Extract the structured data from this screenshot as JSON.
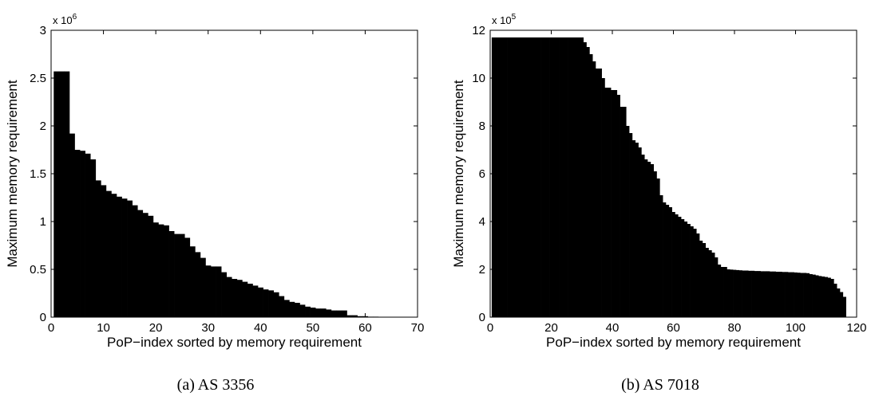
{
  "figure": {
    "captions": [
      "(a) AS 3356",
      "(b) AS 7018"
    ]
  },
  "chart_data": [
    {
      "type": "bar",
      "caption": "(a) AS 3356",
      "xlabel": "PoP−index sorted by memory requirement",
      "ylabel": "Maximum memory requirement",
      "exponent_label": "x 10",
      "exponent_power": "6",
      "xlim": [
        0,
        70
      ],
      "ylim": [
        0,
        3
      ],
      "xticks": [
        0,
        10,
        20,
        30,
        40,
        50,
        60,
        70
      ],
      "yticks": [
        0,
        0.5,
        1,
        1.5,
        2,
        2.5,
        3
      ],
      "ytick_labels": [
        "0",
        "0.5",
        "1",
        "1.5",
        "2",
        "2.5",
        "3"
      ],
      "bar_color": "#000000",
      "x": [
        1,
        2,
        3,
        4,
        5,
        6,
        7,
        8,
        9,
        10,
        11,
        12,
        13,
        14,
        15,
        16,
        17,
        18,
        19,
        20,
        21,
        22,
        23,
        24,
        25,
        26,
        27,
        28,
        29,
        30,
        31,
        32,
        33,
        34,
        35,
        36,
        37,
        38,
        39,
        40,
        41,
        42,
        43,
        44,
        45,
        46,
        47,
        48,
        49,
        50,
        51,
        52,
        53,
        54,
        55,
        56,
        57,
        58,
        59,
        60,
        61,
        62,
        63,
        64,
        65,
        66,
        67,
        68,
        69
      ],
      "values": [
        2.57,
        2.57,
        2.57,
        1.92,
        1.75,
        1.74,
        1.71,
        1.65,
        1.43,
        1.38,
        1.32,
        1.29,
        1.26,
        1.24,
        1.22,
        1.17,
        1.12,
        1.09,
        1.06,
        0.99,
        0.97,
        0.96,
        0.9,
        0.87,
        0.87,
        0.83,
        0.74,
        0.68,
        0.62,
        0.54,
        0.53,
        0.53,
        0.47,
        0.42,
        0.4,
        0.39,
        0.37,
        0.35,
        0.33,
        0.31,
        0.29,
        0.28,
        0.26,
        0.22,
        0.18,
        0.16,
        0.15,
        0.13,
        0.11,
        0.1,
        0.09,
        0.09,
        0.08,
        0.07,
        0.07,
        0.07,
        0.02,
        0.02,
        0.01,
        0.01,
        0.005,
        0.005,
        0.004,
        0.003,
        0.003,
        0.002,
        0.002,
        0.001,
        0.001
      ]
    },
    {
      "type": "bar",
      "caption": "(b) AS 7018",
      "xlabel": "PoP−index sorted by memory requirement",
      "ylabel": "Maximum memory requirement",
      "exponent_label": "x 10",
      "exponent_power": "5",
      "xlim": [
        0,
        120
      ],
      "ylim": [
        0,
        12
      ],
      "xticks": [
        0,
        20,
        40,
        60,
        80,
        100,
        120
      ],
      "yticks": [
        0,
        2,
        4,
        6,
        8,
        10,
        12
      ],
      "ytick_labels": [
        "0",
        "2",
        "4",
        "6",
        "8",
        "10",
        "12"
      ],
      "bar_color": "#000000",
      "x": [
        1,
        2,
        3,
        4,
        5,
        6,
        7,
        8,
        9,
        10,
        11,
        12,
        13,
        14,
        15,
        16,
        17,
        18,
        19,
        20,
        21,
        22,
        23,
        24,
        25,
        26,
        27,
        28,
        29,
        30,
        31,
        32,
        33,
        34,
        35,
        36,
        37,
        38,
        39,
        40,
        41,
        42,
        43,
        44,
        45,
        46,
        47,
        48,
        49,
        50,
        51,
        52,
        53,
        54,
        55,
        56,
        57,
        58,
        59,
        60,
        61,
        62,
        63,
        64,
        65,
        66,
        67,
        68,
        69,
        70,
        71,
        72,
        73,
        74,
        75,
        76,
        77,
        78,
        79,
        80,
        81,
        82,
        83,
        84,
        85,
        86,
        87,
        88,
        89,
        90,
        91,
        92,
        93,
        94,
        95,
        96,
        97,
        98,
        99,
        100,
        101,
        102,
        103,
        104,
        105,
        106,
        107,
        108,
        109,
        110,
        111,
        112,
        113,
        114,
        115,
        116
      ],
      "values": [
        11.7,
        11.7,
        11.7,
        11.7,
        11.7,
        11.7,
        11.7,
        11.7,
        11.7,
        11.7,
        11.7,
        11.7,
        11.7,
        11.7,
        11.7,
        11.7,
        11.7,
        11.7,
        11.7,
        11.7,
        11.7,
        11.7,
        11.7,
        11.7,
        11.7,
        11.7,
        11.7,
        11.7,
        11.7,
        11.7,
        11.5,
        11.3,
        11.0,
        10.7,
        10.4,
        10.4,
        10.0,
        9.6,
        9.6,
        9.5,
        9.5,
        9.3,
        8.8,
        8.8,
        8.0,
        7.7,
        7.4,
        7.3,
        7.1,
        6.8,
        6.6,
        6.5,
        6.4,
        6.1,
        5.8,
        5.1,
        4.8,
        4.7,
        4.6,
        4.4,
        4.3,
        4.2,
        4.1,
        4.0,
        3.9,
        3.8,
        3.7,
        3.5,
        3.2,
        3.1,
        2.9,
        2.8,
        2.7,
        2.5,
        2.2,
        2.1,
        2.1,
        2.0,
        1.99,
        1.98,
        1.97,
        1.96,
        1.95,
        1.95,
        1.94,
        1.94,
        1.93,
        1.93,
        1.92,
        1.92,
        1.92,
        1.91,
        1.91,
        1.9,
        1.9,
        1.89,
        1.89,
        1.88,
        1.88,
        1.87,
        1.86,
        1.85,
        1.85,
        1.84,
        1.8,
        1.78,
        1.75,
        1.72,
        1.7,
        1.68,
        1.65,
        1.6,
        1.4,
        1.2,
        1.05,
        0.85
      ]
    }
  ]
}
